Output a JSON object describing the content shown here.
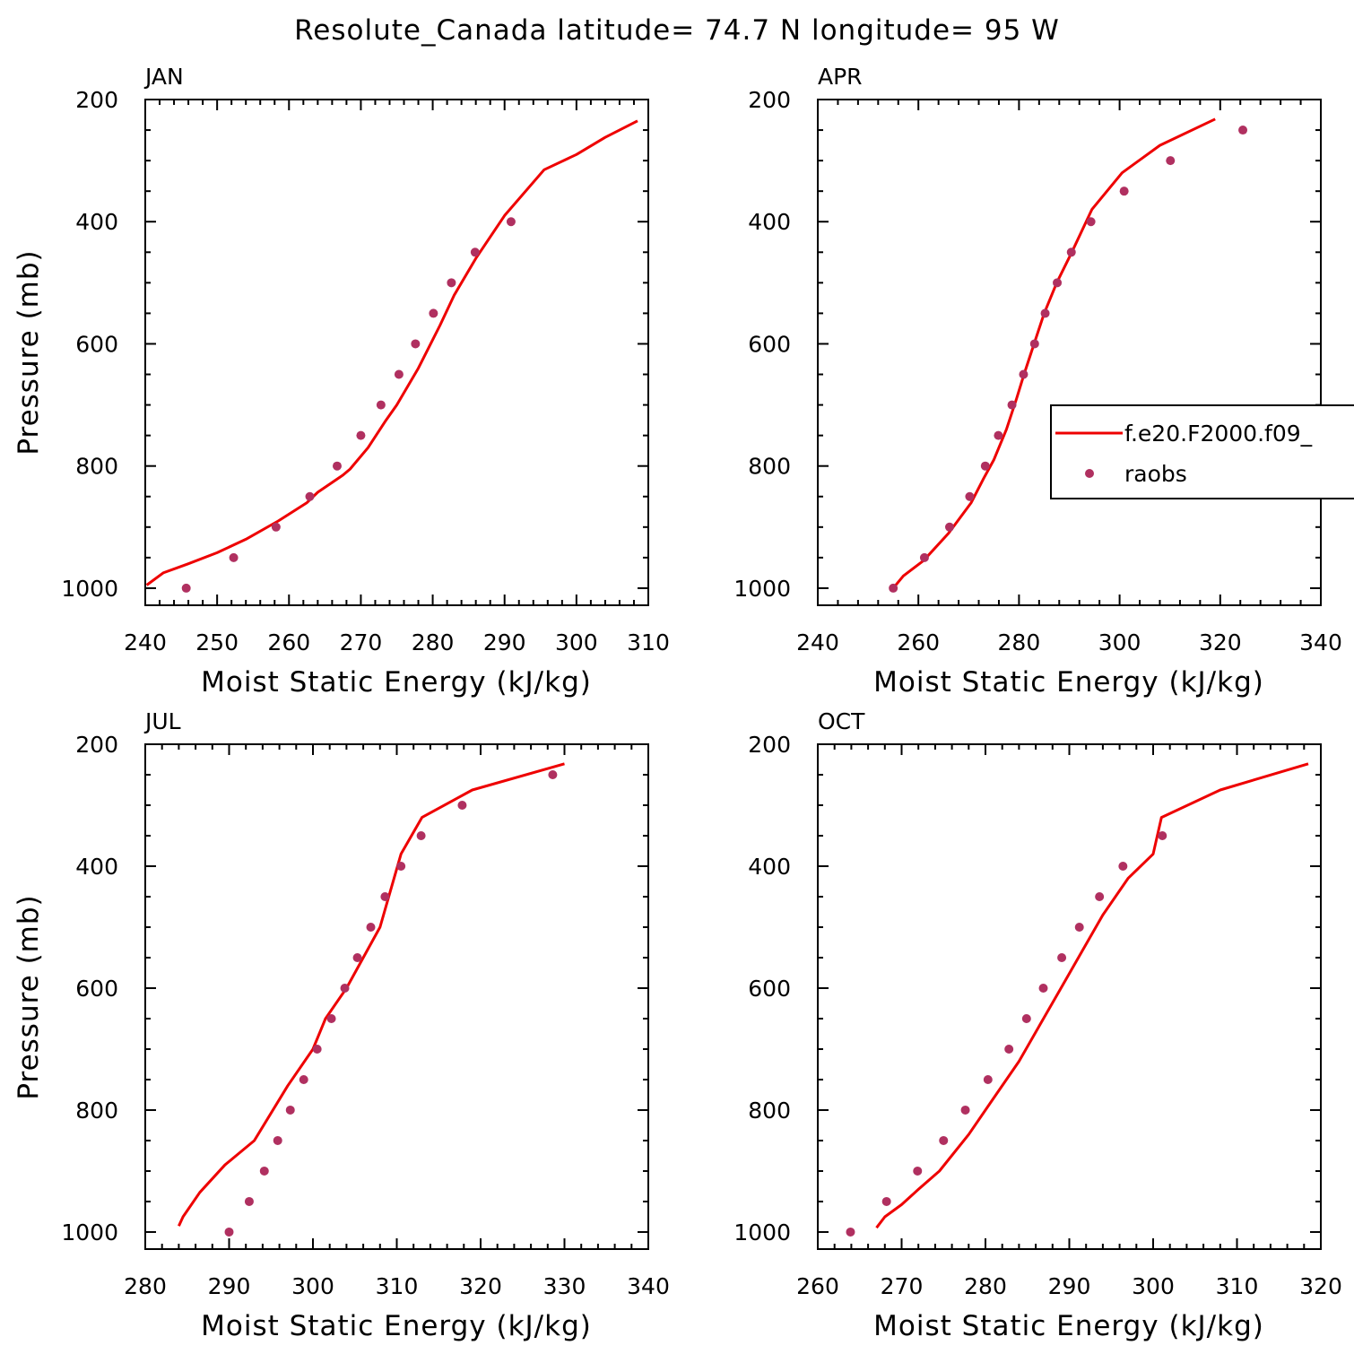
{
  "title": "Resolute_Canada  latitude= 74.7 N longitude= 95 W",
  "colors": {
    "model_line": "#ee0000",
    "obs_marker": "#b03060",
    "axes": "#000000"
  },
  "legend": {
    "entries": [
      {
        "label": "f.e20.F2000.f09_",
        "style": "line"
      },
      {
        "label": "raobs",
        "style": "marker"
      }
    ]
  },
  "chart_data": [
    {
      "type": "line",
      "panel_label": "JAN",
      "xlabel": "Moist Static Energy (kJ/kg)",
      "ylabel": "Pressure (mb)",
      "xlim": [
        240,
        310
      ],
      "ylim": [
        1000,
        200
      ],
      "xticks": [
        240,
        250,
        260,
        270,
        280,
        290,
        300,
        310
      ],
      "yticks": [
        200,
        400,
        600,
        800,
        1000
      ],
      "grid": false,
      "series": [
        {
          "name": "f.e20.F2000.f09_",
          "style": "line",
          "points": [
            [
              240.2,
              995
            ],
            [
              242.5,
              975
            ],
            [
              246,
              960
            ],
            [
              250,
              942
            ],
            [
              254,
              920
            ],
            [
              258.5,
              890
            ],
            [
              262.5,
              860
            ],
            [
              264,
              843
            ],
            [
              267.5,
              815
            ],
            [
              268.5,
              805
            ],
            [
              271,
              770
            ],
            [
              273.5,
              725
            ],
            [
              275,
              700
            ],
            [
              278,
              640
            ],
            [
              281,
              570
            ],
            [
              283,
              520
            ],
            [
              286,
              460
            ],
            [
              290,
              390
            ],
            [
              295.5,
              315
            ],
            [
              300,
              290
            ],
            [
              304,
              262
            ],
            [
              308.5,
              235
            ]
          ]
        },
        {
          "name": "raobs",
          "style": "marker",
          "points": [
            [
              245.7,
              1000
            ],
            [
              252.3,
              950
            ],
            [
              258.2,
              900
            ],
            [
              262.9,
              850
            ],
            [
              266.7,
              800
            ],
            [
              270,
              750
            ],
            [
              272.8,
              700
            ],
            [
              275.3,
              650
            ],
            [
              277.6,
              600
            ],
            [
              280.1,
              550
            ],
            [
              282.6,
              500
            ],
            [
              285.9,
              450
            ],
            [
              290.9,
              400
            ]
          ]
        }
      ]
    },
    {
      "type": "line",
      "panel_label": "APR",
      "xlabel": "Moist Static Energy (kJ/kg)",
      "ylabel": "",
      "xlim": [
        240,
        340
      ],
      "ylim": [
        1000,
        200
      ],
      "xticks": [
        240,
        260,
        280,
        300,
        320,
        340
      ],
      "yticks": [
        200,
        400,
        600,
        800,
        1000
      ],
      "grid": false,
      "series": [
        {
          "name": "f.e20.F2000.f09_",
          "style": "line",
          "points": [
            [
              255,
              1000
            ],
            [
              257,
              980
            ],
            [
              261,
              955
            ],
            [
              266,
              910
            ],
            [
              270.5,
              860
            ],
            [
              273,
              820
            ],
            [
              275,
              790
            ],
            [
              277.5,
              740
            ],
            [
              279.5,
              690
            ],
            [
              281,
              650
            ],
            [
              283,
              600
            ],
            [
              285,
              550
            ],
            [
              287.5,
              500
            ],
            [
              290.5,
              450
            ],
            [
              294.5,
              380
            ],
            [
              300.5,
              320
            ],
            [
              308,
              275
            ],
            [
              319,
              232
            ]
          ]
        },
        {
          "name": "raobs",
          "style": "marker",
          "points": [
            [
              255,
              1000
            ],
            [
              261.2,
              950
            ],
            [
              266.2,
              900
            ],
            [
              270.2,
              850
            ],
            [
              273.3,
              800
            ],
            [
              275.9,
              750
            ],
            [
              278.6,
              700
            ],
            [
              280.9,
              650
            ],
            [
              283.1,
              600
            ],
            [
              285.2,
              550
            ],
            [
              287.6,
              500
            ],
            [
              290.4,
              450
            ],
            [
              294.3,
              400
            ],
            [
              300.9,
              350
            ],
            [
              310.1,
              300
            ],
            [
              324.5,
              250
            ]
          ]
        }
      ]
    },
    {
      "type": "line",
      "panel_label": "JUL",
      "xlabel": "Moist Static Energy (kJ/kg)",
      "ylabel": "Pressure (mb)",
      "xlim": [
        280,
        340
      ],
      "ylim": [
        1000,
        200
      ],
      "xticks": [
        280,
        290,
        300,
        310,
        320,
        330,
        340
      ],
      "yticks": [
        200,
        400,
        600,
        800,
        1000
      ],
      "grid": false,
      "series": [
        {
          "name": "f.e20.F2000.f09_",
          "style": "line",
          "points": [
            [
              284,
              990
            ],
            [
              284.5,
              975
            ],
            [
              286.5,
              935
            ],
            [
              289.5,
              890
            ],
            [
              293,
              850
            ],
            [
              297,
              760
            ],
            [
              300,
              700
            ],
            [
              301.5,
              650
            ],
            [
              304,
              600
            ],
            [
              306,
              550
            ],
            [
              308,
              500
            ],
            [
              310.5,
              380
            ],
            [
              313,
              320
            ],
            [
              319,
              275
            ],
            [
              330,
              232
            ]
          ]
        },
        {
          "name": "raobs",
          "style": "marker",
          "points": [
            [
              290,
              1000
            ],
            [
              292.4,
              950
            ],
            [
              294.2,
              900
            ],
            [
              295.8,
              850
            ],
            [
              297.3,
              800
            ],
            [
              298.9,
              750
            ],
            [
              300.5,
              700
            ],
            [
              302.2,
              650
            ],
            [
              303.8,
              600
            ],
            [
              305.3,
              550
            ],
            [
              306.9,
              500
            ],
            [
              308.6,
              450
            ],
            [
              310.5,
              400
            ],
            [
              312.9,
              350
            ],
            [
              317.8,
              300
            ],
            [
              328.6,
              250
            ]
          ]
        }
      ]
    },
    {
      "type": "line",
      "panel_label": "OCT",
      "xlabel": "Moist Static Energy (kJ/kg)",
      "ylabel": "",
      "xlim": [
        260,
        320
      ],
      "ylim": [
        1000,
        200
      ],
      "xticks": [
        260,
        270,
        280,
        290,
        300,
        310,
        320
      ],
      "yticks": [
        200,
        400,
        600,
        800,
        1000
      ],
      "grid": false,
      "series": [
        {
          "name": "f.e20.F2000.f09_",
          "style": "line",
          "points": [
            [
              267,
              993
            ],
            [
              268,
              975
            ],
            [
              270,
              955
            ],
            [
              272,
              930
            ],
            [
              274.5,
              900
            ],
            [
              278,
              840
            ],
            [
              281,
              780
            ],
            [
              284,
              720
            ],
            [
              286.5,
              660
            ],
            [
              289,
              600
            ],
            [
              291.5,
              540
            ],
            [
              294,
              480
            ],
            [
              297,
              420
            ],
            [
              300,
              380
            ],
            [
              301,
              320
            ],
            [
              308,
              275
            ],
            [
              318.5,
              232
            ]
          ]
        },
        {
          "name": "raobs",
          "style": "marker",
          "points": [
            [
              263.9,
              1000
            ],
            [
              268.2,
              950
            ],
            [
              271.9,
              900
            ],
            [
              275,
              850
            ],
            [
              277.6,
              800
            ],
            [
              280.3,
              750
            ],
            [
              282.8,
              700
            ],
            [
              284.9,
              650
            ],
            [
              286.9,
              600
            ],
            [
              289.1,
              550
            ],
            [
              291.2,
              500
            ],
            [
              293.6,
              450
            ],
            [
              296.4,
              400
            ],
            [
              301.1,
              350
            ]
          ]
        }
      ]
    }
  ]
}
